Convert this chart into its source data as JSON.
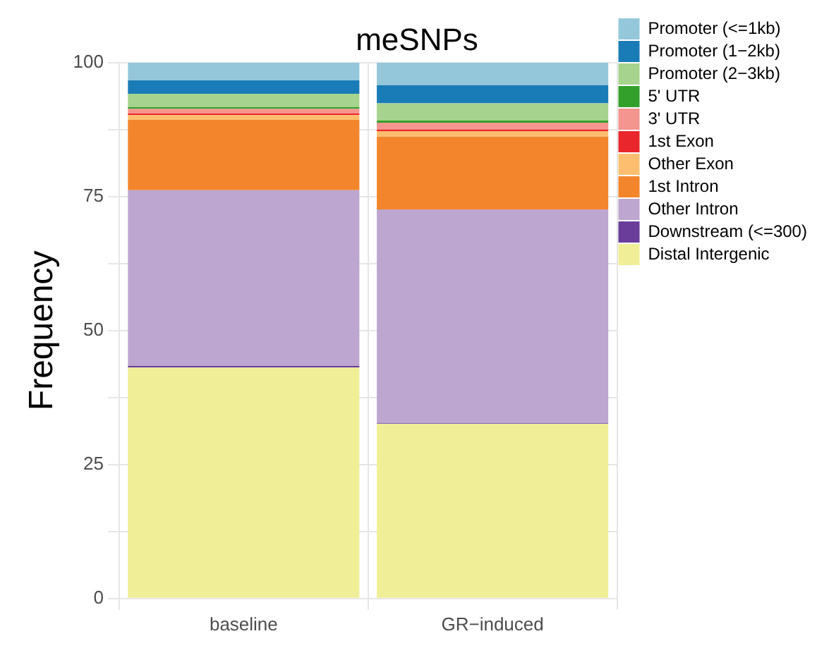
{
  "chart_data": {
    "type": "bar",
    "title": "meSNPs",
    "ylabel": "Frequency",
    "categories": [
      "baseline",
      "GR−induced"
    ],
    "stacked": true,
    "legend": "right",
    "grid": true,
    "ylim": [
      0,
      100
    ],
    "yticks": [
      0,
      {
        "value": 12.5,
        "label": null
      },
      25,
      {
        "value": 37.5,
        "label": null
      },
      50,
      {
        "value": 62.5,
        "label": null
      },
      75,
      {
        "value": 87.5,
        "label": null
      },
      100
    ],
    "series": [
      {
        "name": "Distal Intergenic",
        "color": "#f0ee96",
        "values": [
          43.1,
          32.6
        ]
      },
      {
        "name": "Downstream (<=300)",
        "color": "#6a3d9a",
        "values": [
          0.3,
          0.1
        ]
      },
      {
        "name": "Other Intron",
        "color": "#bda6cf",
        "values": [
          32.8,
          39.9
        ]
      },
      {
        "name": "1st Intron",
        "color": "#f3862c",
        "values": [
          13.1,
          13.6
        ]
      },
      {
        "name": "Other Exon",
        "color": "#fdbf6f",
        "values": [
          0.9,
          1.0
        ]
      },
      {
        "name": "1st Exon",
        "color": "#e8262b",
        "values": [
          0.3,
          0.3
        ]
      },
      {
        "name": "3' UTR",
        "color": "#f4958f",
        "values": [
          0.9,
          1.3
        ]
      },
      {
        "name": "5' UTR",
        "color": "#33a02c",
        "values": [
          0.3,
          0.4
        ]
      },
      {
        "name": "Promoter (2−3kb)",
        "color": "#a6d38d",
        "values": [
          2.5,
          3.2
        ]
      },
      {
        "name": "Promoter (1−2kb)",
        "color": "#1a7cb7",
        "values": [
          2.5,
          3.4
        ]
      },
      {
        "name": "Promoter (<=1kb)",
        "color": "#95c7da",
        "values": [
          3.3,
          4.2
        ]
      }
    ]
  }
}
